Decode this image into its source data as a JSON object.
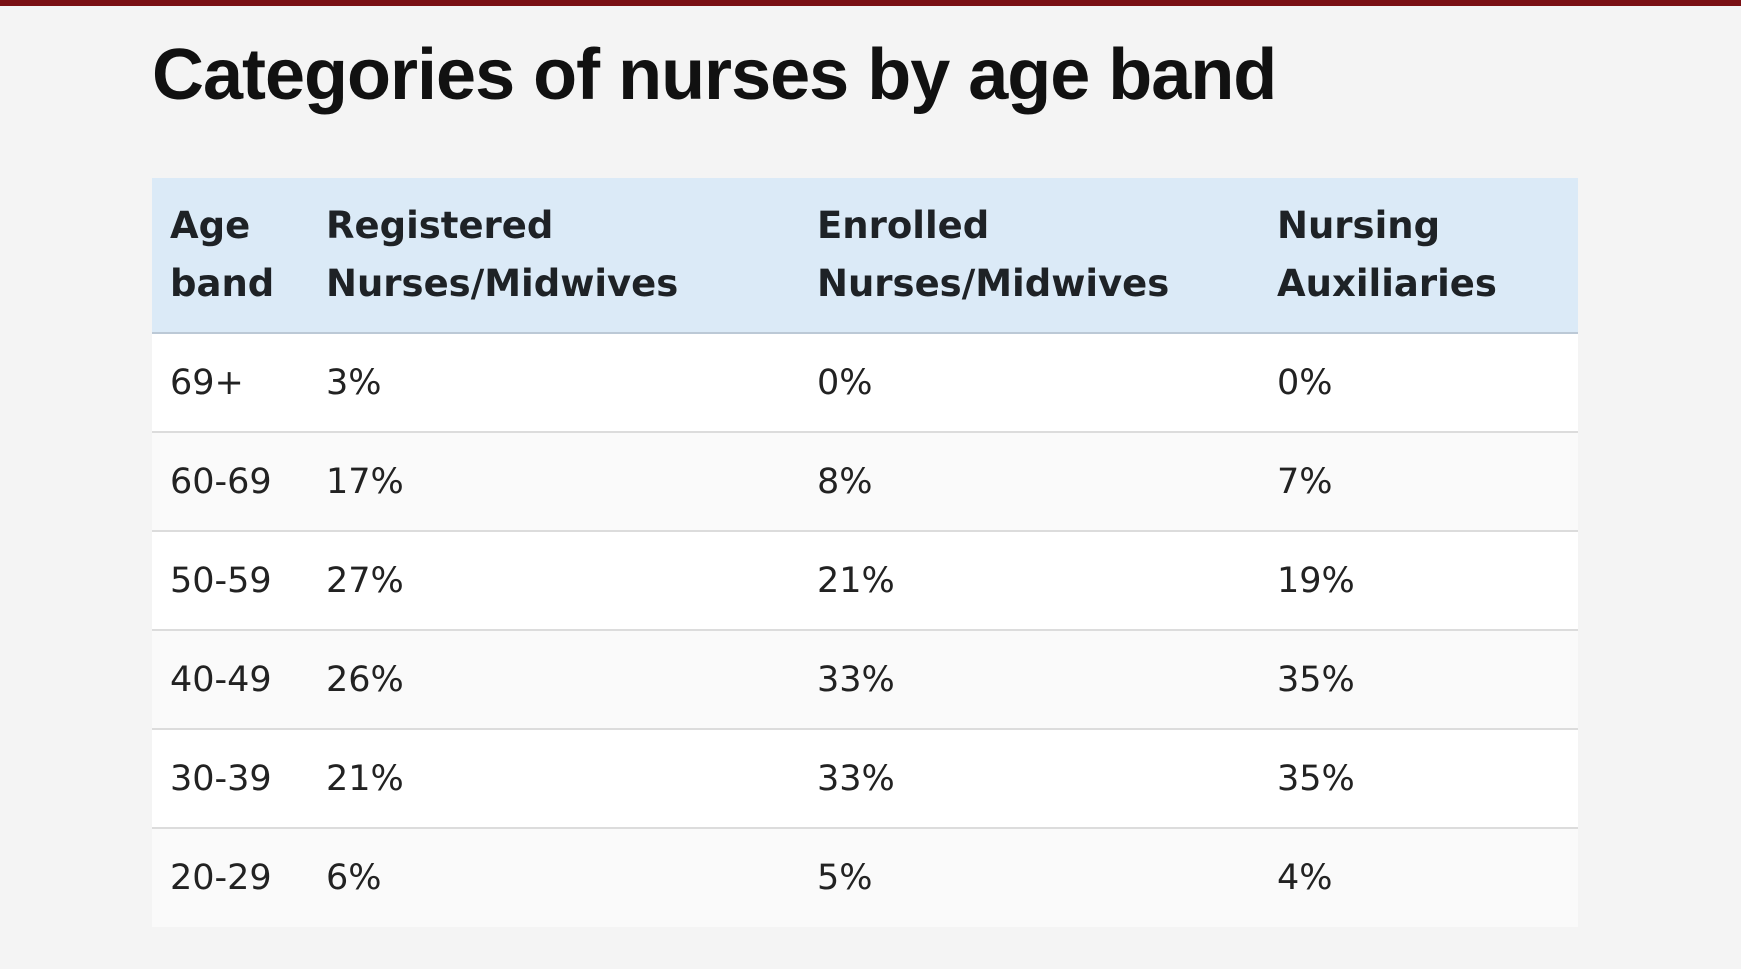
{
  "title": "Categories of nurses by age band",
  "colors": {
    "top_bar": "#7a1014",
    "header_background": "#dbeaf7",
    "page_background": "#f4f4f4"
  },
  "chart_data": {
    "type": "table",
    "title": "Categories of nurses by age band",
    "columns": [
      [
        "Age",
        "band"
      ],
      [
        "Registered",
        "Nurses/Midwives"
      ],
      [
        "Enrolled",
        "Nurses/Midwives"
      ],
      [
        "Nursing",
        "Auxiliaries"
      ]
    ],
    "rows": [
      [
        "69+",
        "3%",
        "0%",
        "0%"
      ],
      [
        "60-69",
        "17%",
        "8%",
        "7%"
      ],
      [
        "50-59",
        "27%",
        "21%",
        "19%"
      ],
      [
        "40-49",
        "26%",
        "33%",
        "35%"
      ],
      [
        "30-39",
        "21%",
        "33%",
        "35%"
      ],
      [
        "20-29",
        "6%",
        "5%",
        "4%"
      ]
    ]
  }
}
